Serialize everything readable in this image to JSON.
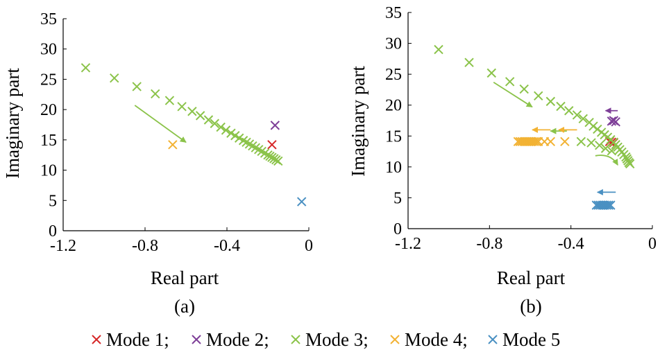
{
  "colors": {
    "mode1": "#d62728",
    "mode2": "#7e3f98",
    "mode3": "#8bc34a",
    "mode4": "#f2b233",
    "mode5": "#4a90c2"
  },
  "chart_data": [
    {
      "type": "scatter",
      "caption": "(a)",
      "xlabel": "Real part",
      "ylabel": "Imaginary part",
      "xlim": [
        -1.2,
        0
      ],
      "ylim": [
        0,
        35
      ],
      "xticks": [
        -1.2,
        -0.8,
        -0.4,
        0
      ],
      "xtick_labels": [
        "-1.2",
        "-0.8",
        "-0.4",
        "0"
      ],
      "yticks": [
        0,
        5,
        10,
        15,
        20,
        25,
        30,
        35
      ],
      "ytick_labels": [
        "0",
        "5",
        "10",
        "15",
        "20",
        "25",
        "30",
        "35"
      ],
      "series": [
        {
          "name": "Mode 1",
          "color_key": "mode1",
          "points": [
            [
              -0.18,
              14.2
            ]
          ]
        },
        {
          "name": "Mode 2",
          "color_key": "mode2",
          "points": [
            [
              -0.165,
              17.4
            ]
          ]
        },
        {
          "name": "Mode 3",
          "color_key": "mode3",
          "points": [
            [
              -1.09,
              26.9
            ],
            [
              -0.95,
              25.2
            ],
            [
              -0.84,
              23.8
            ],
            [
              -0.75,
              22.6
            ],
            [
              -0.68,
              21.5
            ],
            [
              -0.62,
              20.5
            ],
            [
              -0.57,
              19.7
            ],
            [
              -0.53,
              19.0
            ],
            [
              -0.49,
              18.3
            ],
            [
              -0.46,
              17.7
            ],
            [
              -0.43,
              17.1
            ],
            [
              -0.405,
              16.6
            ],
            [
              -0.38,
              16.1
            ],
            [
              -0.36,
              15.7
            ],
            [
              -0.34,
              15.3
            ],
            [
              -0.32,
              14.9
            ],
            [
              -0.305,
              14.6
            ],
            [
              -0.29,
              14.3
            ],
            [
              -0.275,
              14.0
            ],
            [
              -0.26,
              13.7
            ],
            [
              -0.245,
              13.4
            ],
            [
              -0.23,
              13.1
            ],
            [
              -0.215,
              12.8
            ],
            [
              -0.2,
              12.5
            ],
            [
              -0.19,
              12.3
            ],
            [
              -0.18,
              12.1
            ],
            [
              -0.17,
              11.9
            ],
            [
              -0.16,
              11.7
            ],
            [
              -0.15,
              11.5
            ]
          ]
        },
        {
          "name": "Mode 4",
          "color_key": "mode4",
          "points": [
            [
              -0.665,
              14.2
            ]
          ]
        },
        {
          "name": "Mode 5",
          "color_key": "mode5",
          "points": [
            [
              -0.035,
              4.8
            ]
          ]
        }
      ],
      "arrows": [
        {
          "color_key": "mode3",
          "from": [
            -0.85,
            20.7
          ],
          "to": [
            -0.6,
            14.6
          ],
          "curved": false
        }
      ]
    },
    {
      "type": "scatter",
      "caption": "(b)",
      "xlabel": "Real part",
      "ylabel": "Imaginary part",
      "xlim": [
        -1.2,
        0
      ],
      "ylim": [
        0,
        35
      ],
      "xticks": [
        -1.2,
        -0.8,
        -0.4,
        0
      ],
      "xtick_labels": [
        "-1.2",
        "-0.8",
        "-0.4",
        "0"
      ],
      "yticks": [
        0,
        5,
        10,
        15,
        20,
        25,
        30,
        35
      ],
      "ytick_labels": [
        "0",
        "5",
        "10",
        "15",
        "20",
        "25",
        "30",
        "35"
      ],
      "series": [
        {
          "name": "Mode 1",
          "color_key": "mode1",
          "points": [
            [
              -0.2,
              14.0
            ],
            [
              -0.21,
              14.1
            ],
            [
              -0.19,
              13.9
            ]
          ]
        },
        {
          "name": "Mode 2",
          "color_key": "mode2",
          "points": [
            [
              -0.2,
              17.4
            ],
            [
              -0.19,
              17.5
            ],
            [
              -0.18,
              17.3
            ]
          ]
        },
        {
          "name": "Mode 3",
          "color_key": "mode3",
          "points": [
            [
              -1.05,
              29.0
            ],
            [
              -0.9,
              26.9
            ],
            [
              -0.79,
              25.2
            ],
            [
              -0.7,
              23.8
            ],
            [
              -0.63,
              22.6
            ],
            [
              -0.56,
              21.5
            ],
            [
              -0.5,
              20.6
            ],
            [
              -0.45,
              19.8
            ],
            [
              -0.41,
              19.1
            ],
            [
              -0.37,
              18.4
            ],
            [
              -0.34,
              17.8
            ],
            [
              -0.31,
              17.2
            ],
            [
              -0.29,
              16.6
            ],
            [
              -0.27,
              16.1
            ],
            [
              -0.25,
              15.6
            ],
            [
              -0.235,
              15.2
            ],
            [
              -0.22,
              14.8
            ],
            [
              -0.205,
              14.4
            ],
            [
              -0.19,
              14.0
            ],
            [
              -0.18,
              13.6
            ],
            [
              -0.17,
              13.2
            ],
            [
              -0.16,
              12.8
            ],
            [
              -0.15,
              12.4
            ],
            [
              -0.14,
              12.0
            ],
            [
              -0.13,
              11.6
            ],
            [
              -0.125,
              11.3
            ],
            [
              -0.12,
              11.0
            ],
            [
              -0.115,
              10.7
            ],
            [
              -0.11,
              10.5
            ],
            [
              -0.35,
              14.1
            ],
            [
              -0.3,
              13.9
            ],
            [
              -0.26,
              13.5
            ],
            [
              -0.23,
              13.0
            ],
            [
              -0.2,
              12.6
            ]
          ]
        },
        {
          "name": "Mode 4",
          "color_key": "mode4",
          "points": [
            [
              -0.66,
              14.1
            ],
            [
              -0.65,
              14.1
            ],
            [
              -0.64,
              14.1
            ],
            [
              -0.63,
              14.1
            ],
            [
              -0.62,
              14.1
            ],
            [
              -0.61,
              14.1
            ],
            [
              -0.6,
              14.1
            ],
            [
              -0.59,
              14.1
            ],
            [
              -0.58,
              14.1
            ],
            [
              -0.57,
              14.1
            ],
            [
              -0.56,
              14.1
            ],
            [
              -0.53,
              14.1
            ],
            [
              -0.5,
              14.1
            ],
            [
              -0.43,
              14.1
            ]
          ]
        },
        {
          "name": "Mode 5",
          "color_key": "mode5",
          "points": [
            [
              -0.275,
              3.8
            ],
            [
              -0.265,
              3.8
            ],
            [
              -0.255,
              3.8
            ],
            [
              -0.245,
              3.8
            ],
            [
              -0.235,
              3.8
            ],
            [
              -0.225,
              3.8
            ],
            [
              -0.215,
              3.8
            ],
            [
              -0.205,
              3.8
            ]
          ]
        }
      ],
      "arrows": [
        {
          "color_key": "mode3",
          "from": [
            -0.78,
            23.7
          ],
          "to": [
            -0.59,
            19.7
          ],
          "curved": false
        },
        {
          "color_key": "mode3",
          "from": [
            -0.42,
            15.8
          ],
          "to": [
            -0.5,
            15.8
          ],
          "curved": false
        },
        {
          "color_key": "mode3",
          "from": [
            -0.28,
            11.8
          ],
          "to": [
            -0.17,
            10.3
          ],
          "curved": true
        },
        {
          "color_key": "mode2",
          "from": [
            -0.17,
            19.1
          ],
          "to": [
            -0.23,
            19.1
          ],
          "curved": false
        },
        {
          "color_key": "mode4",
          "from": [
            -0.5,
            16.0
          ],
          "to": [
            -0.59,
            16.0
          ],
          "curved": false
        },
        {
          "color_key": "mode4",
          "from": [
            -0.37,
            16.0
          ],
          "to": [
            -0.46,
            16.0
          ],
          "curved": false
        },
        {
          "color_key": "mode5",
          "from": [
            -0.18,
            5.9
          ],
          "to": [
            -0.27,
            5.9
          ],
          "curved": false
        }
      ]
    }
  ],
  "legend": {
    "items": [
      {
        "label": "Mode 1;",
        "color_key": "mode1"
      },
      {
        "label": "Mode 2;",
        "color_key": "mode2"
      },
      {
        "label": "Mode 3;",
        "color_key": "mode3"
      },
      {
        "label": "Mode 4;",
        "color_key": "mode4"
      },
      {
        "label": "Mode 5",
        "color_key": "mode5"
      }
    ]
  }
}
